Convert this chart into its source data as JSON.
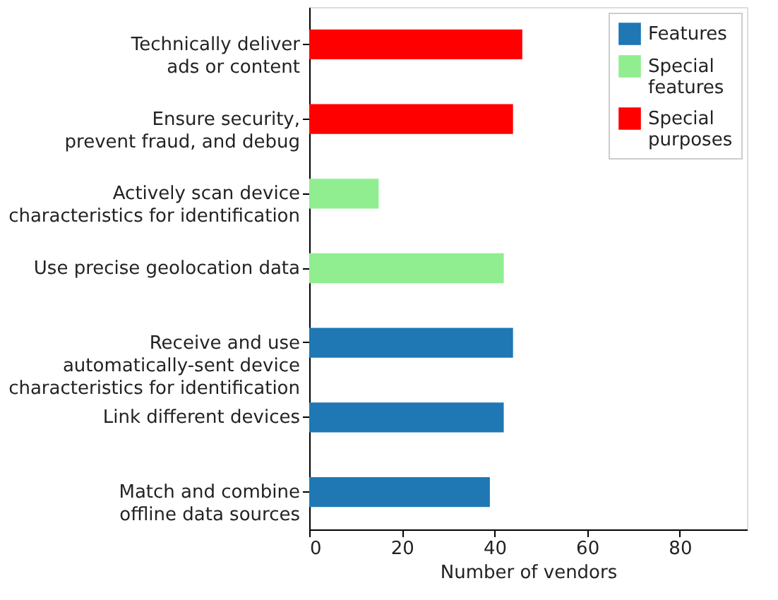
{
  "chart_data": {
    "type": "bar",
    "orientation": "horizontal",
    "xlabel": "Number of vendors",
    "categories": [
      "Technically deliver\nads or content",
      "Ensure security,\nprevent fraud, and debug",
      "Actively scan device\ncharacteristics for identification",
      "Use precise geolocation data",
      "Receive and use\nautomatically-sent device\ncharacteristics for identification",
      "Link different devices",
      "Match and combine\noffline data sources"
    ],
    "series": [
      {
        "name": "Features",
        "color": "#1f77b4",
        "values": [
          null,
          null,
          null,
          null,
          44,
          42,
          39
        ]
      },
      {
        "name": "Special features",
        "color": "#90ee90",
        "values": [
          null,
          null,
          15,
          42,
          null,
          null,
          null
        ]
      },
      {
        "name": "Special purposes",
        "color": "#ff0000",
        "values": [
          46,
          44,
          null,
          null,
          null,
          null,
          null
        ]
      }
    ],
    "xlim": [
      0,
      94.5
    ],
    "xticks": [
      0,
      20,
      40,
      60,
      80
    ],
    "grid": false,
    "legend": "top right"
  }
}
